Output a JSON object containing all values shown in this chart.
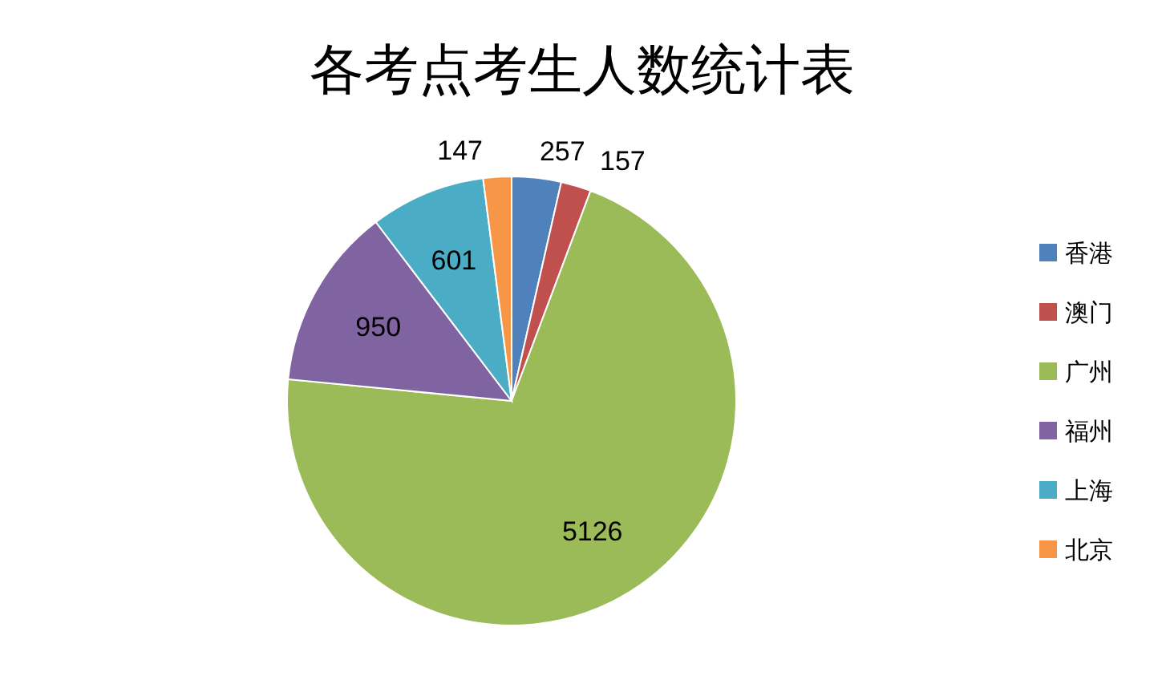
{
  "chart_data": {
    "type": "pie",
    "title": "各考点考生人数统计表",
    "categories": [
      "香港",
      "澳门",
      "广州",
      "福州",
      "上海",
      "北京"
    ],
    "values": [
      257,
      157,
      5126,
      950,
      601,
      147
    ],
    "colors": [
      "#4f81bd",
      "#c0504d",
      "#9bbb59",
      "#8064a2",
      "#4bacc6",
      "#f79646"
    ],
    "data_labels": true,
    "legend": "right"
  }
}
